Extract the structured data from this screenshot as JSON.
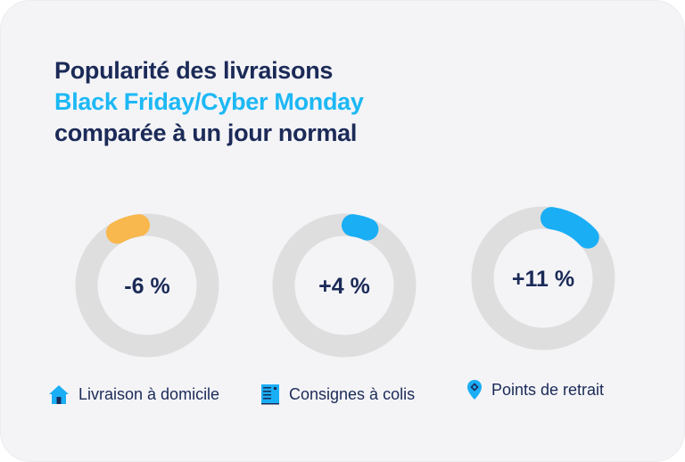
{
  "title": {
    "line1": "Popularité des livraisons",
    "line2": "Black Friday/Cyber Monday",
    "line3": "comparée à un jour normal"
  },
  "chart_data": {
    "type": "donut",
    "unit": "%",
    "items": [
      {
        "label": "Livraison à domicile",
        "value": -6,
        "display": "-6 %",
        "color": "#f8b84e",
        "icon": "house-icon"
      },
      {
        "label": "Consignes à colis",
        "value": 4,
        "display": "+4 %",
        "color": "#1aaef5",
        "icon": "locker-icon"
      },
      {
        "label": "Points de retrait",
        "value": 11,
        "display": "+11 %",
        "color": "#1aaef5",
        "icon": "map-pin-icon"
      }
    ],
    "track_color": "#dedede"
  },
  "colors": {
    "navy": "#1b2a57",
    "accent": "#1cb8f5"
  }
}
